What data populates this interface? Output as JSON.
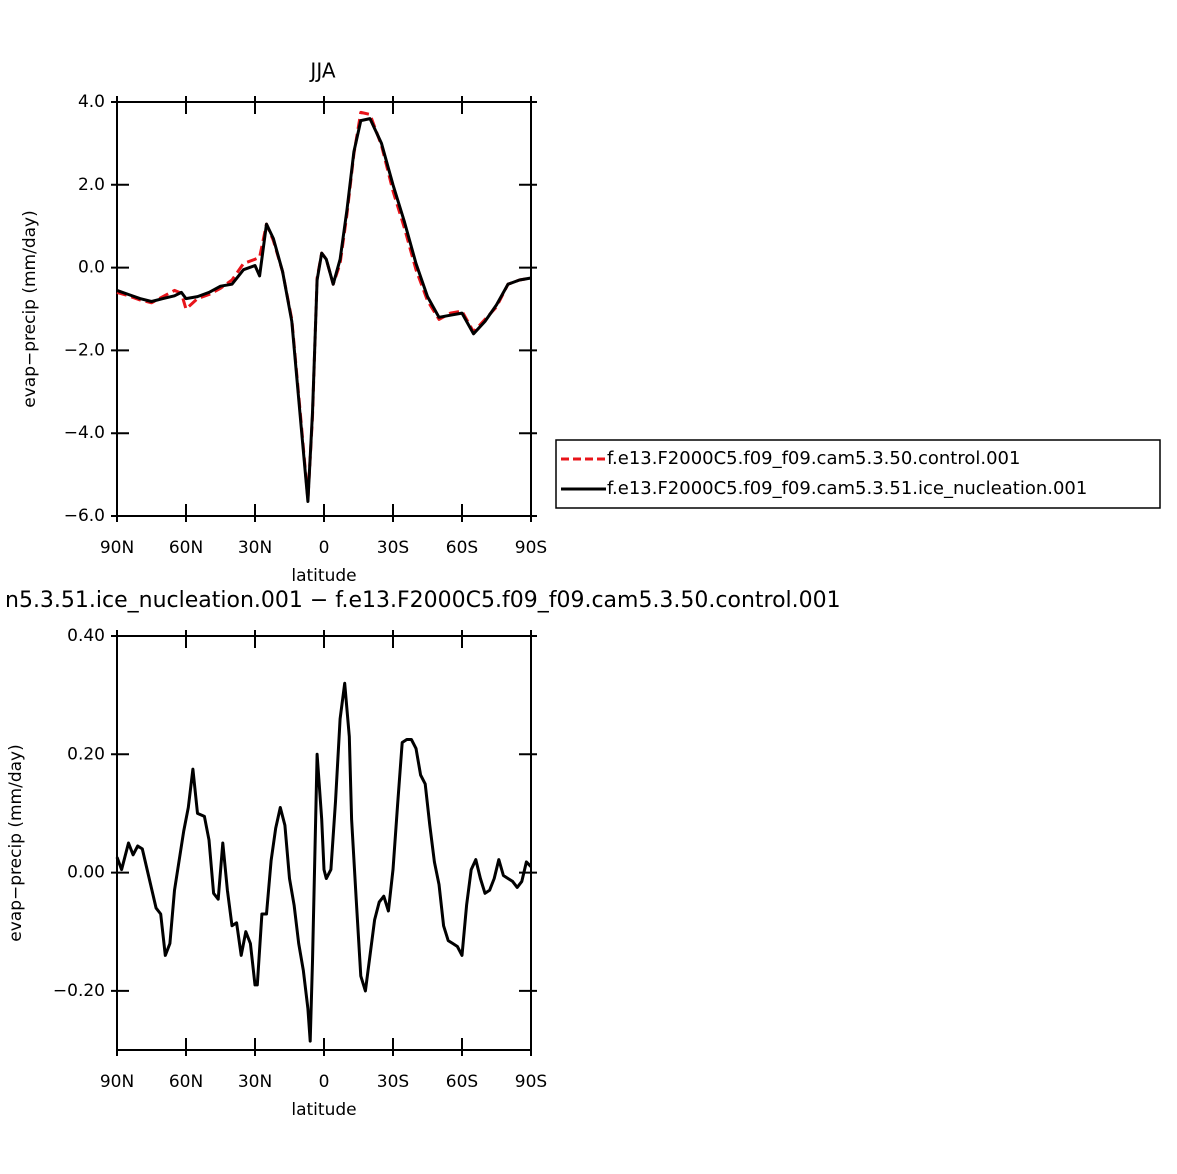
{
  "chart_data": [
    {
      "type": "line",
      "title": "JJA",
      "xlabel": "latitude",
      "ylabel": "evap−precip (mm/day)",
      "x": [
        90,
        85,
        80,
        75,
        70,
        65,
        62,
        60,
        55,
        50,
        45,
        40,
        35,
        30,
        28,
        25,
        22,
        18,
        14,
        10,
        7,
        5,
        3,
        1,
        -1,
        -4,
        -7,
        -10,
        -13,
        -16,
        -20,
        -25,
        -30,
        -35,
        -40,
        -45,
        -50,
        -55,
        -60,
        -65,
        -70,
        -75,
        -80,
        -85,
        -90
      ],
      "xlim": [
        90,
        -90
      ],
      "xticks": [
        {
          "value": 90,
          "label": "90N"
        },
        {
          "value": 60,
          "label": "60N"
        },
        {
          "value": 30,
          "label": "30N"
        },
        0,
        {
          "value": -30,
          "label": "30S"
        },
        {
          "value": -60,
          "label": "60S"
        },
        {
          "value": -90,
          "label": "90S"
        }
      ],
      "ylim": [
        -6,
        4
      ],
      "yticks": [
        {
          "value": 4,
          "label": "4.0"
        },
        {
          "value": 2,
          "label": "2.0"
        },
        {
          "value": 0,
          "label": "0.0"
        },
        {
          "value": -2,
          "label": "−2.0"
        },
        {
          "value": -4,
          "label": "−4.0"
        },
        {
          "value": -6,
          "label": "−6.0"
        }
      ],
      "series": [
        {
          "name": "f.e13.F2000C5.f09_f09.cam5.3.50.control.001",
          "color": "#e8141a",
          "dashed": true,
          "values": [
            -0.6,
            -0.68,
            -0.78,
            -0.85,
            -0.7,
            -0.55,
            -0.62,
            -1.0,
            -0.75,
            -0.65,
            -0.5,
            -0.3,
            0.1,
            0.2,
            0.25,
            1.05,
            0.65,
            -0.1,
            -1.25,
            -3.7,
            -5.6,
            -3.6,
            -0.25,
            0.35,
            0.2,
            -0.4,
            0.1,
            1.3,
            2.75,
            3.75,
            3.7,
            2.95,
            1.85,
            0.95,
            -0.05,
            -0.8,
            -1.25,
            -1.1,
            -1.05,
            -1.55,
            -1.25,
            -0.95,
            -0.4,
            -0.3,
            -0.25
          ]
        },
        {
          "name": "f.e13.F2000C5.f09_f09.cam5.3.51.ice_nucleation.001",
          "color": "#000000",
          "dashed": false,
          "values": [
            -0.55,
            -0.65,
            -0.75,
            -0.82,
            -0.75,
            -0.68,
            -0.6,
            -0.75,
            -0.7,
            -0.6,
            -0.45,
            -0.4,
            -0.05,
            0.05,
            -0.2,
            1.05,
            0.7,
            -0.1,
            -1.3,
            -3.8,
            -5.65,
            -3.5,
            -0.3,
            0.35,
            0.2,
            -0.4,
            0.2,
            1.4,
            2.8,
            3.55,
            3.6,
            3.0,
            2.0,
            1.1,
            0.1,
            -0.7,
            -1.2,
            -1.15,
            -1.1,
            -1.6,
            -1.3,
            -0.9,
            -0.4,
            -0.3,
            -0.25
          ]
        }
      ]
    },
    {
      "type": "line",
      "title": "n5.3.51.ice_nucleation.001 − f.e13.F2000C5.f09_f09.cam5.3.50.control.001",
      "xlabel": "latitude",
      "ylabel": "evap−precip (mm/day)",
      "x": [
        90,
        88,
        85,
        83,
        81,
        79,
        76,
        73,
        71,
        69,
        67,
        65,
        63,
        61,
        59,
        57,
        55,
        52,
        50,
        48,
        46,
        44,
        42,
        40,
        38,
        36,
        34,
        32,
        30,
        29,
        27,
        25,
        23,
        21,
        19,
        17,
        15,
        13,
        11,
        9,
        7,
        6,
        5,
        3,
        1,
        0,
        -1,
        -3,
        -5,
        -7,
        -9,
        -11,
        -12,
        -14,
        -16,
        -18,
        -20,
        -22,
        -24,
        -26,
        -28,
        -30,
        -32,
        -34,
        -36,
        -38,
        -40,
        -42,
        -44,
        -46,
        -48,
        -50,
        -52,
        -54,
        -56,
        -58,
        -60,
        -62,
        -64,
        -66,
        -68,
        -70,
        -72,
        -74,
        -76,
        -78,
        -80,
        -82,
        -84,
        -86,
        -88,
        -90
      ],
      "xlim": [
        90,
        -90
      ],
      "xticks": [
        {
          "value": 90,
          "label": "90N"
        },
        {
          "value": 60,
          "label": "60N"
        },
        {
          "value": 30,
          "label": "30N"
        },
        0,
        {
          "value": -30,
          "label": "30S"
        },
        {
          "value": -60,
          "label": "60S"
        },
        {
          "value": -90,
          "label": "90S"
        }
      ],
      "ylim": [
        -0.3,
        0.4
      ],
      "yticks": [
        {
          "value": 0.4,
          "label": "0.40"
        },
        {
          "value": 0.2,
          "label": "0.20"
        },
        {
          "value": 0,
          "label": "0.00"
        },
        {
          "value": -0.2,
          "label": "−0.20"
        }
      ],
      "series": [
        {
          "color": "#000000",
          "dashed": false,
          "values": [
            0.026,
            0.005,
            0.05,
            0.03,
            0.045,
            0.04,
            -0.01,
            -0.06,
            -0.07,
            -0.14,
            -0.12,
            -0.03,
            0.02,
            0.07,
            0.11,
            0.175,
            0.1,
            0.095,
            0.055,
            -0.035,
            -0.045,
            0.05,
            -0.03,
            -0.09,
            -0.085,
            -0.14,
            -0.1,
            -0.12,
            -0.19,
            -0.19,
            -0.07,
            -0.07,
            0.02,
            0.075,
            0.11,
            0.08,
            -0.01,
            -0.055,
            -0.12,
            -0.165,
            -0.23,
            -0.285,
            -0.15,
            0.2,
            0.09,
            0.005,
            -0.01,
            0.005,
            0.12,
            0.26,
            0.32,
            0.23,
            0.09,
            -0.045,
            -0.175,
            -0.2,
            -0.14,
            -0.08,
            -0.05,
            -0.04,
            -0.065,
            0.005,
            0.115,
            0.22,
            0.225,
            0.225,
            0.21,
            0.165,
            0.15,
            0.08,
            0.018,
            -0.02,
            -0.09,
            -0.115,
            -0.12,
            -0.125,
            -0.14,
            -0.055,
            0.005,
            0.022,
            -0.01,
            -0.035,
            -0.03,
            -0.01,
            0.022,
            -0.005,
            -0.01,
            -0.015,
            -0.025,
            -0.015,
            0.018,
            0.01
          ]
        }
      ]
    }
  ]
}
